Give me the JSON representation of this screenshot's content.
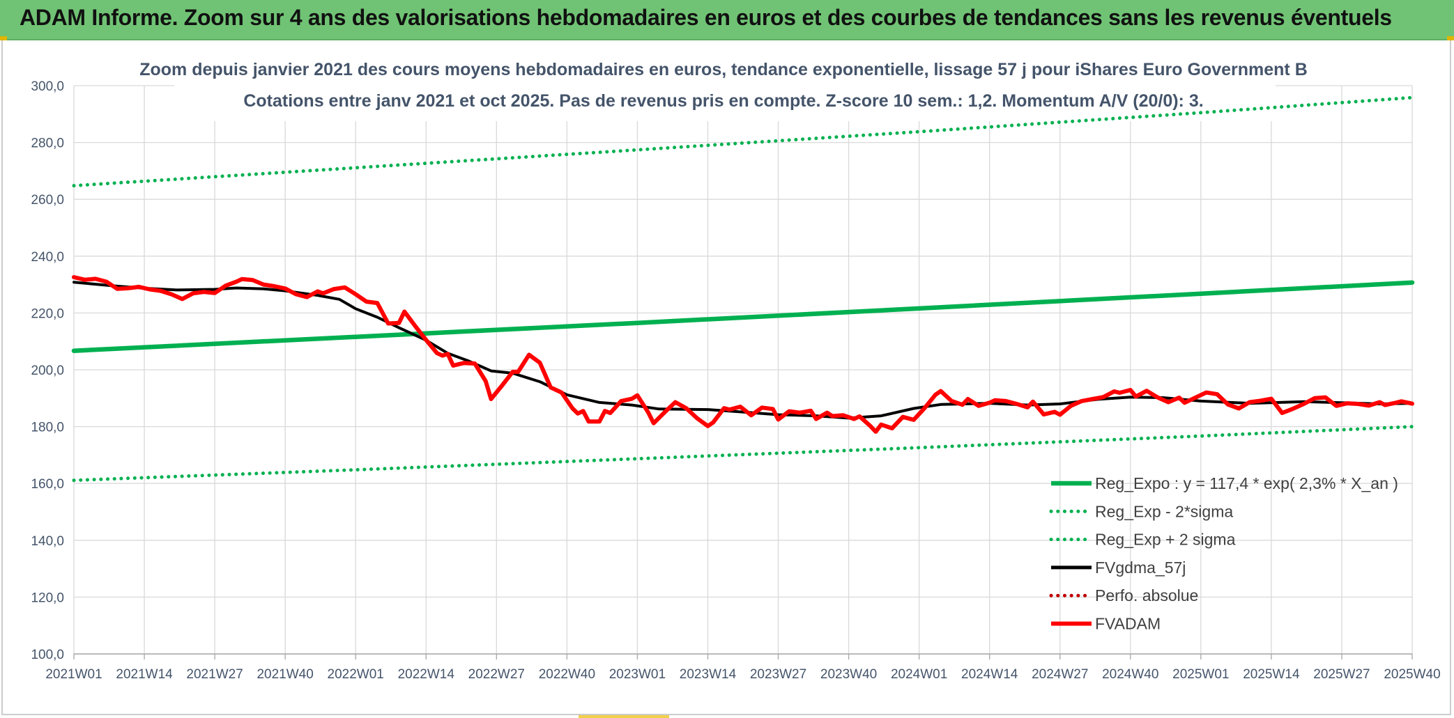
{
  "banner": {
    "title": "ADAM Informe. Zoom sur 4 ans des valorisations hebdomadaires en euros et des courbes de tendances sans les revenus éventuels"
  },
  "colors": {
    "banner_bg": "#70c374",
    "reg_expo": "#00b050",
    "fvgdma": "#000000",
    "fvadam": "#ff0000",
    "perfo": "#c00000",
    "axis_text": "#44546a",
    "grid": "#d9d9d9"
  },
  "chart_data": {
    "type": "line",
    "title": "Zoom depuis janvier 2021 des cours moyens hebdomadaires en euros, tendance exponentielle, lissage 57 j pour iShares Euro Government B",
    "subtitle": "Cotations entre janv 2021 et oct 2025. Pas de revenus pris en compte. Z-score 10 sem.: 1,2. Momentum A/V (20/0): 3.",
    "xlabel": "",
    "ylabel": "",
    "ylim": [
      100,
      300
    ],
    "ytick_step": 20,
    "yticks": [
      "100,0",
      "120,0",
      "140,0",
      "160,0",
      "180,0",
      "200,0",
      "220,0",
      "240,0",
      "260,0",
      "280,0",
      "300,0"
    ],
    "xticks": [
      "2021W01",
      "2021W14",
      "2021W27",
      "2021W40",
      "2022W01",
      "2022W14",
      "2022W27",
      "2022W40",
      "2023W01",
      "2023W14",
      "2023W27",
      "2023W40",
      "2024W01",
      "2024W14",
      "2024W27",
      "2024W40",
      "2025W01",
      "2025W14",
      "2025W27",
      "2025W40"
    ],
    "grid": true,
    "legend_position": "bottom-right",
    "series": [
      {
        "name": "Reg_Expo : y = 117,4 * exp( 2,3% *  X_an )",
        "color": "#00b050",
        "style": "solid-thick",
        "points": [
          [
            "2021W01",
            206.7
          ],
          [
            "2022W01",
            211.6
          ],
          [
            "2023W01",
            216.5
          ],
          [
            "2024W01",
            221.6
          ],
          [
            "2025W01",
            226.8
          ],
          [
            "2025W40",
            230.7
          ]
        ]
      },
      {
        "name": "Reg_Exp - 2*sigma",
        "color": "#00b050",
        "style": "dotted",
        "points": [
          [
            "2021W01",
            161.1
          ],
          [
            "2022W01",
            164.8
          ],
          [
            "2023W01",
            168.7
          ],
          [
            "2024W01",
            172.6
          ],
          [
            "2025W01",
            176.7
          ],
          [
            "2025W40",
            180.0
          ]
        ]
      },
      {
        "name": "Reg_Exp + 2 sigma",
        "color": "#00b050",
        "style": "dotted",
        "points": [
          [
            "2021W01",
            264.8
          ],
          [
            "2022W01",
            271.1
          ],
          [
            "2023W01",
            277.4
          ],
          [
            "2024W01",
            283.8
          ],
          [
            "2025W01",
            290.5
          ],
          [
            "2025W40",
            295.8
          ]
        ]
      },
      {
        "name": "FVgdma_57j",
        "color": "#000000",
        "style": "solid",
        "points": [
          [
            "2021W01",
            230.8
          ],
          [
            "2021W08",
            229.6
          ],
          [
            "2021W14",
            228.7
          ],
          [
            "2021W20",
            228.1
          ],
          [
            "2021W27",
            228.3
          ],
          [
            "2021W31",
            228.8
          ],
          [
            "2021W36",
            228.5
          ],
          [
            "2021W40",
            227.8
          ],
          [
            "2021W46",
            226.2
          ],
          [
            "2021W50",
            224.8
          ],
          [
            "2022W01",
            221.5
          ],
          [
            "2022W05",
            218.5
          ],
          [
            "2022W09",
            214.8
          ],
          [
            "2022W14",
            210.4
          ],
          [
            "2022W18",
            205.8
          ],
          [
            "2022W22",
            203.0
          ],
          [
            "2022W26",
            199.6
          ],
          [
            "2022W30",
            198.8
          ],
          [
            "2022W35",
            195.8
          ],
          [
            "2022W40",
            191.2
          ],
          [
            "2022W46",
            188.5
          ],
          [
            "2022W52",
            187.6
          ],
          [
            "2023W05",
            186.2
          ],
          [
            "2023W14",
            186.0
          ],
          [
            "2023W20",
            185.2
          ],
          [
            "2023W27",
            184.2
          ],
          [
            "2023W34",
            183.8
          ],
          [
            "2023W40",
            183.0
          ],
          [
            "2023W46",
            183.8
          ],
          [
            "2023W52",
            186.4
          ],
          [
            "2024W05",
            187.8
          ],
          [
            "2024W14",
            188.2
          ],
          [
            "2024W21",
            187.6
          ],
          [
            "2024W27",
            188.0
          ],
          [
            "2024W34",
            189.6
          ],
          [
            "2024W40",
            190.4
          ],
          [
            "2024W46",
            190.2
          ],
          [
            "2025W01",
            189.0
          ],
          [
            "2025W10",
            188.2
          ],
          [
            "2025W14",
            188.4
          ],
          [
            "2025W20",
            188.8
          ],
          [
            "2025W27",
            188.4
          ],
          [
            "2025W34",
            188.0
          ],
          [
            "2025W40",
            188.2
          ]
        ]
      },
      {
        "name": "Perfo. absolue",
        "color": "#c00000",
        "style": "dotted",
        "points": []
      },
      {
        "name": "FVADAM",
        "color": "#ff0000",
        "style": "solid-thick",
        "points": [
          [
            "2021W01",
            232.6
          ],
          [
            "2021W03",
            231.7
          ],
          [
            "2021W05",
            232.0
          ],
          [
            "2021W07",
            231.0
          ],
          [
            "2021W09",
            228.5
          ],
          [
            "2021W11",
            228.7
          ],
          [
            "2021W13",
            229.2
          ],
          [
            "2021W15",
            228.3
          ],
          [
            "2021W17",
            227.8
          ],
          [
            "2021W19",
            226.6
          ],
          [
            "2021W21",
            224.9
          ],
          [
            "2021W23",
            226.9
          ],
          [
            "2021W25",
            227.4
          ],
          [
            "2021W27",
            227.0
          ],
          [
            "2021W29",
            229.6
          ],
          [
            "2021W31",
            231.0
          ],
          [
            "2021W32",
            231.9
          ],
          [
            "2021W34",
            231.6
          ],
          [
            "2021W36",
            230.0
          ],
          [
            "2021W38",
            229.4
          ],
          [
            "2021W40",
            228.6
          ],
          [
            "2021W42",
            226.6
          ],
          [
            "2021W44",
            225.6
          ],
          [
            "2021W46",
            227.6
          ],
          [
            "2021W47",
            226.9
          ],
          [
            "2021W49",
            228.4
          ],
          [
            "2021W51",
            229.0
          ],
          [
            "2022W01",
            226.6
          ],
          [
            "2022W03",
            224.0
          ],
          [
            "2022W05",
            223.5
          ],
          [
            "2022W07",
            216.3
          ],
          [
            "2022W09",
            216.5
          ],
          [
            "2022W10",
            220.5
          ],
          [
            "2022W12",
            215.4
          ],
          [
            "2022W14",
            210.5
          ],
          [
            "2022W16",
            205.9
          ],
          [
            "2022W17",
            205.0
          ],
          [
            "2022W18",
            205.6
          ],
          [
            "2022W19",
            201.5
          ],
          [
            "2022W21",
            202.4
          ],
          [
            "2022W23",
            202.2
          ],
          [
            "2022W25",
            196.0
          ],
          [
            "2022W26",
            189.7
          ],
          [
            "2022W28",
            194.4
          ],
          [
            "2022W30",
            199.3
          ],
          [
            "2022W31",
            199.3
          ],
          [
            "2022W33",
            205.3
          ],
          [
            "2022W35",
            202.5
          ],
          [
            "2022W37",
            193.8
          ],
          [
            "2022W39",
            192.0
          ],
          [
            "2022W41",
            186.5
          ],
          [
            "2022W42",
            184.6
          ],
          [
            "2022W43",
            185.5
          ],
          [
            "2022W44",
            181.8
          ],
          [
            "2022W46",
            181.8
          ],
          [
            "2022W47",
            185.5
          ],
          [
            "2022W48",
            184.8
          ],
          [
            "2022W50",
            189.0
          ],
          [
            "2022W52",
            189.8
          ],
          [
            "2023W01",
            191.0
          ],
          [
            "2023W03",
            185.0
          ],
          [
            "2023W04",
            181.2
          ],
          [
            "2023W06",
            185.0
          ],
          [
            "2023W08",
            188.6
          ],
          [
            "2023W10",
            186.5
          ],
          [
            "2023W12",
            183.0
          ],
          [
            "2023W14",
            180.2
          ],
          [
            "2023W15",
            181.5
          ],
          [
            "2023W17",
            186.5
          ],
          [
            "2023W18",
            186.0
          ],
          [
            "2023W20",
            187.0
          ],
          [
            "2023W22",
            184.0
          ],
          [
            "2023W24",
            186.7
          ],
          [
            "2023W26",
            186.2
          ],
          [
            "2023W27",
            182.5
          ],
          [
            "2023W29",
            185.4
          ],
          [
            "2023W31",
            184.9
          ],
          [
            "2023W33",
            185.6
          ],
          [
            "2023W34",
            182.7
          ],
          [
            "2023W36",
            184.9
          ],
          [
            "2023W37",
            183.7
          ],
          [
            "2023W39",
            184.0
          ],
          [
            "2023W41",
            182.7
          ],
          [
            "2023W42",
            183.6
          ],
          [
            "2023W44",
            180.2
          ],
          [
            "2023W45",
            178.2
          ],
          [
            "2023W46",
            180.7
          ],
          [
            "2023W48",
            179.4
          ],
          [
            "2023W50",
            183.4
          ],
          [
            "2023W52",
            182.4
          ],
          [
            "2024W02",
            186.5
          ],
          [
            "2024W04",
            191.2
          ],
          [
            "2024W05",
            192.5
          ],
          [
            "2024W07",
            189.0
          ],
          [
            "2024W09",
            187.7
          ],
          [
            "2024W10",
            189.7
          ],
          [
            "2024W12",
            187.3
          ],
          [
            "2024W14",
            188.4
          ],
          [
            "2024W15",
            189.3
          ],
          [
            "2024W17",
            189.0
          ],
          [
            "2024W19",
            188.0
          ],
          [
            "2024W21",
            186.8
          ],
          [
            "2024W22",
            188.8
          ],
          [
            "2024W24",
            184.3
          ],
          [
            "2024W26",
            185.2
          ],
          [
            "2024W27",
            184.2
          ],
          [
            "2024W29",
            187.3
          ],
          [
            "2024W31",
            189.0
          ],
          [
            "2024W33",
            189.7
          ],
          [
            "2024W35",
            190.4
          ],
          [
            "2024W37",
            192.4
          ],
          [
            "2024W38",
            191.9
          ],
          [
            "2024W40",
            192.9
          ],
          [
            "2024W41",
            190.6
          ],
          [
            "2024W43",
            192.6
          ],
          [
            "2024W45",
            190.3
          ],
          [
            "2024W47",
            188.6
          ],
          [
            "2024W49",
            190.2
          ],
          [
            "2024W50",
            188.4
          ],
          [
            "2025W02",
            192.0
          ],
          [
            "2025W04",
            191.4
          ],
          [
            "2025W06",
            187.8
          ],
          [
            "2025W08",
            186.4
          ],
          [
            "2025W10",
            188.6
          ],
          [
            "2025W12",
            189.1
          ],
          [
            "2025W14",
            189.8
          ],
          [
            "2025W16",
            184.8
          ],
          [
            "2025W18",
            186.3
          ],
          [
            "2025W20",
            188.0
          ],
          [
            "2025W22",
            190.0
          ],
          [
            "2025W24",
            190.3
          ],
          [
            "2025W26",
            187.3
          ],
          [
            "2025W28",
            188.2
          ],
          [
            "2025W30",
            188.0
          ],
          [
            "2025W32",
            187.4
          ],
          [
            "2025W34",
            188.6
          ],
          [
            "2025W35",
            187.6
          ],
          [
            "2025W37",
            188.4
          ],
          [
            "2025W38",
            188.9
          ],
          [
            "2025W40",
            188.1
          ]
        ]
      }
    ]
  }
}
